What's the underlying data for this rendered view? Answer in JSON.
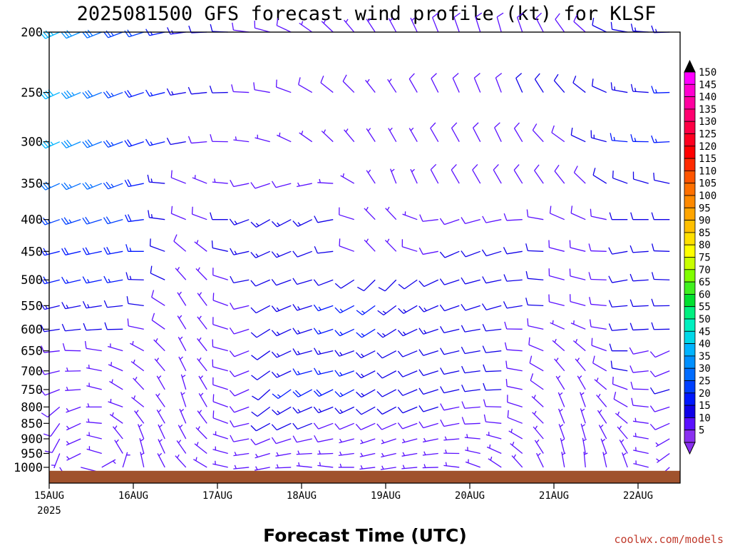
{
  "chart_data": {
    "type": "wind-barb-time-height",
    "title": "2025081500 GFS forecast wind profile (kt) for KLSF",
    "xlabel": "Forecast Time (UTC)",
    "y_axis": {
      "ticks": [
        "200",
        "250",
        "300",
        "350",
        "400",
        "450",
        "500",
        "550",
        "600",
        "650",
        "700",
        "750",
        "800",
        "850",
        "900",
        "950",
        "1000"
      ],
      "values": [
        200,
        250,
        300,
        350,
        400,
        450,
        500,
        550,
        600,
        650,
        700,
        750,
        800,
        850,
        900,
        950,
        1000
      ],
      "scale": "log-pressure",
      "reversed": true,
      "range": [
        200,
        1060
      ]
    },
    "x_axis": {
      "ticks": [
        "15AUG",
        "16AUG",
        "17AUG",
        "18AUG",
        "19AUG",
        "20AUG",
        "21AUG",
        "22AUG"
      ],
      "year_label": "2025",
      "range_hours": [
        0,
        180
      ],
      "tick_hours": [
        0,
        24,
        48,
        72,
        96,
        120,
        144,
        168
      ]
    },
    "colorbar": {
      "labels": [
        "150",
        "145",
        "140",
        "135",
        "130",
        "125",
        "120",
        "115",
        "110",
        "105",
        "100",
        "95",
        "90",
        "85",
        "80",
        "75",
        "70",
        "65",
        "60",
        "55",
        "50",
        "45",
        "40",
        "35",
        "30",
        "25",
        "20",
        "15",
        "10",
        "5"
      ],
      "colors": [
        "#ff00ff",
        "#ff00d0",
        "#ff00a0",
        "#ff0070",
        "#ff0045",
        "#ff0020",
        "#ff0000",
        "#ff2a00",
        "#ff5500",
        "#ff7000",
        "#ff8a00",
        "#ffa500",
        "#ffc000",
        "#ffe000",
        "#ffff00",
        "#c8ff00",
        "#80ff00",
        "#40f020",
        "#00e030",
        "#00f080",
        "#00f0c0",
        "#00d8e8",
        "#00b4ff",
        "#0090ff",
        "#006cff",
        "#0040ff",
        "#0018ff",
        "#1000e8",
        "#5a10ff",
        "#8a30f0"
      ]
    },
    "surface_color": "#a0522d",
    "winds": [
      {
        "level": 200,
        "profile": [
          [
            0,
            245,
            38
          ],
          [
            24,
            250,
            22
          ],
          [
            42,
            265,
            12
          ],
          [
            60,
            280,
            8
          ],
          [
            78,
            310,
            7
          ],
          [
            96,
            330,
            6
          ],
          [
            114,
            340,
            8
          ],
          [
            132,
            345,
            10
          ],
          [
            150,
            320,
            8
          ],
          [
            165,
            280,
            12
          ],
          [
            180,
            265,
            15
          ]
        ]
      },
      {
        "level": 250,
        "profile": [
          [
            0,
            245,
            40
          ],
          [
            24,
            250,
            20
          ],
          [
            42,
            262,
            12
          ],
          [
            60,
            275,
            9
          ],
          [
            78,
            305,
            8
          ],
          [
            96,
            325,
            7
          ],
          [
            114,
            335,
            9
          ],
          [
            132,
            340,
            10
          ],
          [
            150,
            315,
            10
          ],
          [
            165,
            280,
            14
          ],
          [
            180,
            265,
            16
          ]
        ]
      },
      {
        "level": 300,
        "profile": [
          [
            0,
            245,
            38
          ],
          [
            24,
            250,
            22
          ],
          [
            42,
            262,
            8
          ],
          [
            60,
            280,
            7
          ],
          [
            78,
            310,
            6
          ],
          [
            96,
            330,
            6
          ],
          [
            114,
            330,
            8
          ],
          [
            132,
            335,
            8
          ],
          [
            150,
            300,
            10
          ],
          [
            165,
            275,
            15
          ],
          [
            180,
            265,
            16
          ]
        ]
      },
      {
        "level": 350,
        "profile": [
          [
            0,
            245,
            30
          ],
          [
            24,
            250,
            22
          ],
          [
            42,
            300,
            6
          ],
          [
            60,
            250,
            8
          ],
          [
            78,
            260,
            7
          ],
          [
            96,
            340,
            6
          ],
          [
            114,
            330,
            8
          ],
          [
            132,
            330,
            8
          ],
          [
            150,
            320,
            8
          ],
          [
            165,
            290,
            12
          ],
          [
            180,
            280,
            12
          ]
        ]
      },
      {
        "level": 400,
        "profile": [
          [
            0,
            250,
            25
          ],
          [
            24,
            255,
            20
          ],
          [
            42,
            300,
            6
          ],
          [
            60,
            240,
            15
          ],
          [
            78,
            245,
            12
          ],
          [
            96,
            330,
            5
          ],
          [
            114,
            250,
            8
          ],
          [
            132,
            260,
            9
          ],
          [
            150,
            300,
            8
          ],
          [
            165,
            270,
            10
          ],
          [
            180,
            270,
            12
          ]
        ]
      },
      {
        "level": 450,
        "profile": [
          [
            0,
            255,
            20
          ],
          [
            24,
            260,
            18
          ],
          [
            42,
            320,
            6
          ],
          [
            60,
            245,
            14
          ],
          [
            78,
            250,
            12
          ],
          [
            96,
            330,
            5
          ],
          [
            114,
            245,
            10
          ],
          [
            132,
            255,
            12
          ],
          [
            150,
            290,
            8
          ],
          [
            165,
            260,
            10
          ],
          [
            180,
            275,
            10
          ]
        ]
      },
      {
        "level": 500,
        "profile": [
          [
            0,
            255,
            18
          ],
          [
            24,
            260,
            15
          ],
          [
            42,
            330,
            5
          ],
          [
            60,
            245,
            12
          ],
          [
            78,
            255,
            12
          ],
          [
            96,
            220,
            12
          ],
          [
            114,
            250,
            12
          ],
          [
            132,
            260,
            12
          ],
          [
            150,
            290,
            8
          ],
          [
            165,
            260,
            10
          ],
          [
            180,
            275,
            10
          ]
        ]
      },
      {
        "level": 550,
        "profile": [
          [
            0,
            255,
            15
          ],
          [
            24,
            265,
            12
          ],
          [
            42,
            340,
            5
          ],
          [
            60,
            240,
            10
          ],
          [
            78,
            255,
            15
          ],
          [
            96,
            230,
            15
          ],
          [
            114,
            250,
            12
          ],
          [
            132,
            255,
            12
          ],
          [
            150,
            290,
            8
          ],
          [
            165,
            265,
            10
          ],
          [
            180,
            270,
            10
          ]
        ]
      },
      {
        "level": 600,
        "profile": [
          [
            0,
            260,
            12
          ],
          [
            24,
            270,
            10
          ],
          [
            42,
            340,
            5
          ],
          [
            60,
            235,
            10
          ],
          [
            78,
            255,
            15
          ],
          [
            96,
            235,
            15
          ],
          [
            114,
            255,
            12
          ],
          [
            132,
            265,
            10
          ],
          [
            150,
            300,
            6
          ],
          [
            165,
            265,
            10
          ],
          [
            180,
            270,
            10
          ]
        ]
      },
      {
        "level": 650,
        "profile": [
          [
            0,
            260,
            10
          ],
          [
            24,
            290,
            6
          ],
          [
            42,
            340,
            5
          ],
          [
            60,
            230,
            10
          ],
          [
            78,
            260,
            15
          ],
          [
            96,
            240,
            12
          ],
          [
            114,
            255,
            12
          ],
          [
            132,
            265,
            10
          ],
          [
            150,
            320,
            6
          ],
          [
            165,
            270,
            10
          ],
          [
            180,
            240,
            8
          ]
        ]
      },
      {
        "level": 700,
        "profile": [
          [
            0,
            250,
            8
          ],
          [
            24,
            300,
            6
          ],
          [
            42,
            340,
            5
          ],
          [
            60,
            230,
            10
          ],
          [
            78,
            260,
            18
          ],
          [
            96,
            240,
            12
          ],
          [
            114,
            255,
            12
          ],
          [
            132,
            270,
            10
          ],
          [
            150,
            330,
            6
          ],
          [
            165,
            280,
            10
          ],
          [
            180,
            240,
            8
          ]
        ]
      },
      {
        "level": 750,
        "profile": [
          [
            0,
            240,
            8
          ],
          [
            24,
            310,
            6
          ],
          [
            42,
            350,
            5
          ],
          [
            60,
            225,
            10
          ],
          [
            78,
            245,
            20
          ],
          [
            96,
            240,
            12
          ],
          [
            114,
            255,
            12
          ],
          [
            132,
            270,
            10
          ],
          [
            150,
            340,
            6
          ],
          [
            165,
            290,
            8
          ],
          [
            180,
            245,
            12
          ]
        ]
      },
      {
        "level": 800,
        "profile": [
          [
            0,
            220,
            8
          ],
          [
            24,
            300,
            6
          ],
          [
            42,
            350,
            5
          ],
          [
            60,
            230,
            10
          ],
          [
            78,
            250,
            15
          ],
          [
            96,
            240,
            10
          ],
          [
            114,
            255,
            10
          ],
          [
            132,
            275,
            8
          ],
          [
            150,
            350,
            6
          ],
          [
            165,
            300,
            8
          ],
          [
            180,
            240,
            10
          ]
        ]
      },
      {
        "level": 850,
        "profile": [
          [
            0,
            200,
            8
          ],
          [
            24,
            320,
            6
          ],
          [
            42,
            340,
            5
          ],
          [
            60,
            240,
            10
          ],
          [
            78,
            250,
            10
          ],
          [
            96,
            245,
            8
          ],
          [
            114,
            255,
            8
          ],
          [
            132,
            280,
            8
          ],
          [
            150,
            350,
            6
          ],
          [
            165,
            310,
            6
          ],
          [
            180,
            230,
            8
          ]
        ]
      },
      {
        "level": 900,
        "profile": [
          [
            0,
            190,
            8
          ],
          [
            24,
            340,
            6
          ],
          [
            42,
            330,
            5
          ],
          [
            60,
            245,
            8
          ],
          [
            78,
            260,
            8
          ],
          [
            96,
            250,
            6
          ],
          [
            114,
            260,
            6
          ],
          [
            132,
            290,
            6
          ],
          [
            150,
            350,
            5
          ],
          [
            165,
            320,
            6
          ],
          [
            180,
            220,
            6
          ]
        ]
      },
      {
        "level": 950,
        "profile": [
          [
            0,
            180,
            6
          ],
          [
            24,
            350,
            5
          ],
          [
            42,
            320,
            5
          ],
          [
            60,
            250,
            6
          ],
          [
            78,
            270,
            6
          ],
          [
            96,
            255,
            5
          ],
          [
            114,
            265,
            5
          ],
          [
            132,
            300,
            5
          ],
          [
            150,
            355,
            5
          ],
          [
            165,
            330,
            5
          ],
          [
            180,
            210,
            5
          ]
        ]
      },
      {
        "level": 1000,
        "profile": [
          [
            0,
            170,
            5
          ],
          [
            24,
            355,
            5
          ],
          [
            42,
            310,
            5
          ],
          [
            60,
            255,
            5
          ],
          [
            78,
            280,
            5
          ],
          [
            96,
            260,
            5
          ],
          [
            114,
            270,
            5
          ],
          [
            132,
            310,
            5
          ],
          [
            150,
            358,
            5
          ],
          [
            165,
            340,
            5
          ],
          [
            180,
            200,
            5
          ]
        ]
      }
    ]
  },
  "credit": "coolwx.com/models"
}
